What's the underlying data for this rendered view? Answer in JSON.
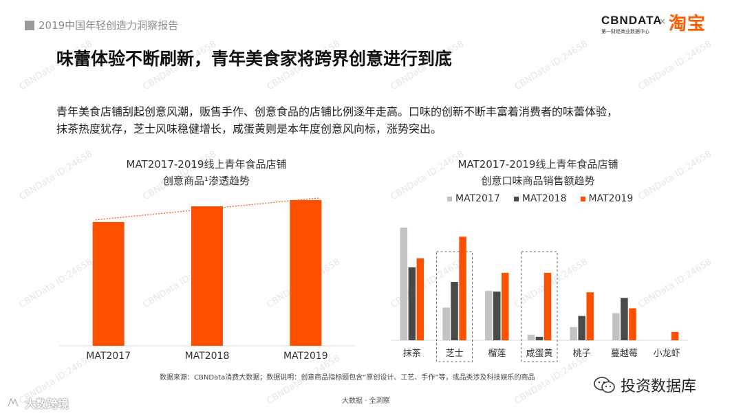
{
  "header": {
    "report_tag": "2019中国年轻创造力洞察报告",
    "brand_left": "CBNDATA",
    "brand_left_sub": "第一财经商业数据中心",
    "brand_sep": "×",
    "brand_right": "淘宝"
  },
  "title": "味蕾体验不断刷新，青年美食家将跨界创意进行到底",
  "description_line1": "青年美食店铺刮起创意风潮，贩售手作、创意食品的店铺比例逐年走高。口味的创新不断丰富着消费者的味蕾体验，",
  "description_line2": "抹茶热度犹存，芝士风味稳健增长，咸蛋黄则是本年度创意风向标，涨势突出。",
  "watermark_text": "CBNData ID:24658",
  "chart_data": [
    {
      "type": "bar",
      "title_line1": "MAT2017-2019线上青年食品店铺",
      "title_line2": "创意商品¹渗透趋势",
      "categories": [
        "MAT2017",
        "MAT2018",
        "MAT2019"
      ],
      "values": [
        0.79,
        0.89,
        0.93
      ],
      "ylim": [
        0,
        1
      ],
      "bar_color": "#ff5000",
      "trend_line": true,
      "trend_color": "#ff5000"
    },
    {
      "type": "bar",
      "title_line1": "MAT2017-2019线上青年食品店铺",
      "title_line2": "创意口味商品销售额趋势",
      "categories": [
        "抹茶",
        "芝士",
        "榴莲",
        "咸蛋黄",
        "桃子",
        "蔓越莓",
        "小龙虾"
      ],
      "highlighted": [
        "芝士",
        "咸蛋黄"
      ],
      "ylim": [
        0,
        170
      ],
      "legend_position": "top",
      "series": [
        {
          "name": "MAT2017",
          "color": "#c3c3c3",
          "values": [
            162,
            47,
            71,
            8,
            19,
            39,
            0
          ]
        },
        {
          "name": "MAT2018",
          "color": "#4a4a4a",
          "values": [
            105,
            84,
            70,
            5,
            35,
            61,
            0
          ]
        },
        {
          "name": "MAT2019",
          "color": "#ff5000",
          "values": [
            118,
            149,
            97,
            97,
            69,
            46,
            12
          ]
        }
      ]
    }
  ],
  "footnote": "数据来源：CBNData消费大数据；数据说明：创意商品指标题包含“原创设计、工艺、手作”等，或品类涉及科技娱乐的商品",
  "footer": "大数据 · 全洞察",
  "wechat_account": "投资数据库",
  "bottom_logo": "大数跨境"
}
